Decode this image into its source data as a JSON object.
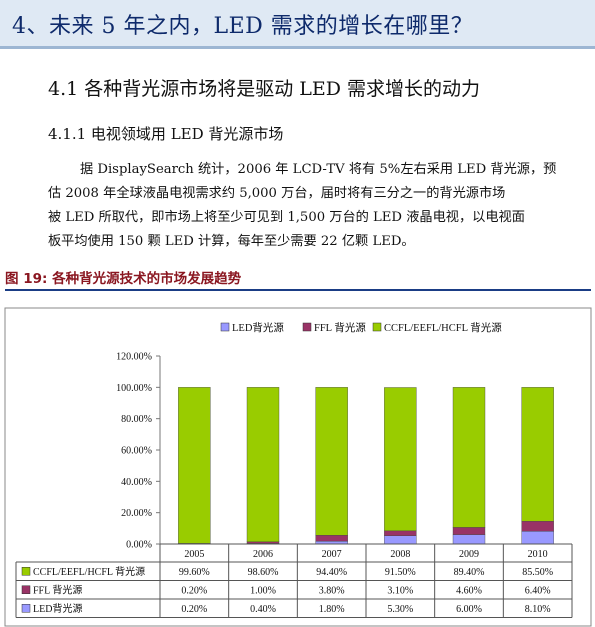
{
  "header": {
    "title": "4、未来 5 年之内，LED 需求的增长在哪里？"
  },
  "section": {
    "title": "4.1  各种背光源市场将是驱动 LED 需求增长的动力"
  },
  "subsection": {
    "title": "4.1.1 电视领域用 LED 背光源市场"
  },
  "paragraph": {
    "lines": [
      "据 DisplaySearch 统计，2006 年 LCD-TV 将有 5%左右采用 LED 背光源，预",
      "估 2008 年全球液晶电视需求约 5,000 万台，届时将有三分之一的背光源市场",
      "被 LED 所取代，即市场上将至少可见到 1,500 万台的 LED 液晶电视，以电视面",
      "板平均使用 150 颗 LED 计算，每年至少需要 22 亿颗 LED。"
    ]
  },
  "figure": {
    "title": "图 19: 各种背光源技术的市场发展趋势"
  },
  "colors": {
    "led": "#9999ff",
    "ffl": "#993366",
    "ccfl": "#99cc00",
    "header_bg": "#dfe9f4",
    "fig_title": "#8a1620"
  },
  "chart_data": {
    "type": "bar",
    "stacked": true,
    "categories": [
      "2005",
      "2006",
      "2007",
      "2008",
      "2009",
      "2010"
    ],
    "series": [
      {
        "name": "LED背光源",
        "color": "#9999ff",
        "values": [
          0.2,
          0.4,
          1.8,
          5.3,
          6.0,
          8.1
        ],
        "labels": [
          "0.20%",
          "0.40%",
          "1.80%",
          "5.30%",
          "6.00%",
          "8.10%"
        ]
      },
      {
        "name": "FFL 背光源",
        "color": "#993366",
        "values": [
          0.2,
          1.0,
          3.8,
          3.1,
          4.6,
          6.4
        ],
        "labels": [
          "0.20%",
          "1.00%",
          "3.80%",
          "3.10%",
          "4.60%",
          "6.40%"
        ]
      },
      {
        "name": "CCFL/EEFL/HCFL 背光源",
        "color": "#99cc00",
        "values": [
          99.6,
          98.6,
          94.4,
          91.5,
          89.4,
          85.5
        ],
        "labels": [
          "99.60%",
          "98.60%",
          "94.40%",
          "91.50%",
          "89.40%",
          "85.50%"
        ]
      }
    ],
    "table_row_order": [
      2,
      1,
      0
    ],
    "ylim": [
      0,
      120
    ],
    "yticks": [
      "0.00%",
      "20.00%",
      "40.00%",
      "60.00%",
      "80.00%",
      "100.00%",
      "120.00%"
    ],
    "legend": "top",
    "grid": false
  }
}
